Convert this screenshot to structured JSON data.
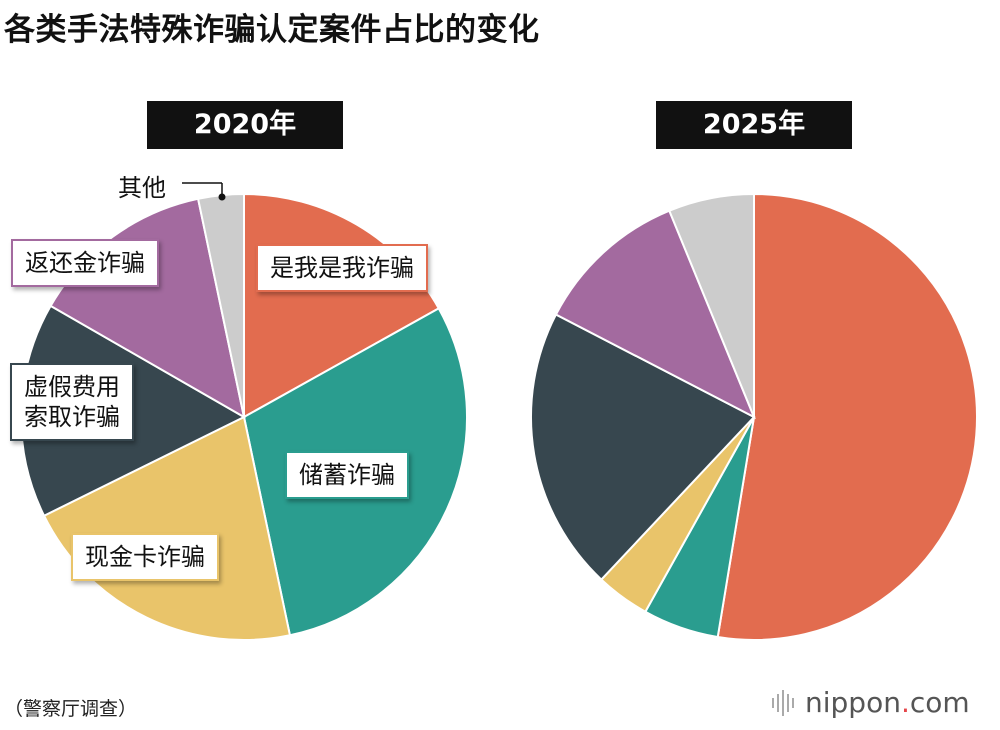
{
  "title": "各类手法特殊诈骗认定案件占比的变化",
  "source": "（警察厅调查）",
  "logo": {
    "name": "nippon",
    "dot": ".",
    "suffix": "com"
  },
  "colors": {
    "ore": "#e26c4f",
    "savings": "#2a9d8f",
    "cash_card": "#e9c46a",
    "fee": "#37474f",
    "refund": "#a36a9f",
    "other": "#cccccc"
  },
  "chart_data": [
    {
      "type": "pie",
      "title": "2020年",
      "labels": [
        "是我是我诈骗",
        "储蓄诈骗",
        "现金卡诈骗",
        "虚假费用\n索取诈骗",
        "返还金诈骗",
        "其他"
      ],
      "values": [
        16.9,
        29.8,
        21.0,
        15.6,
        13.4,
        3.3
      ]
    },
    {
      "type": "pie",
      "title": "2025年",
      "labels": [
        "是我是我诈骗",
        "储蓄诈骗",
        "现金卡诈骗",
        "虚假费用索取诈骗",
        "返还金诈骗",
        "其他"
      ],
      "values": [
        52.6,
        5.5,
        3.9,
        20.6,
        11.2,
        6.2
      ]
    }
  ]
}
